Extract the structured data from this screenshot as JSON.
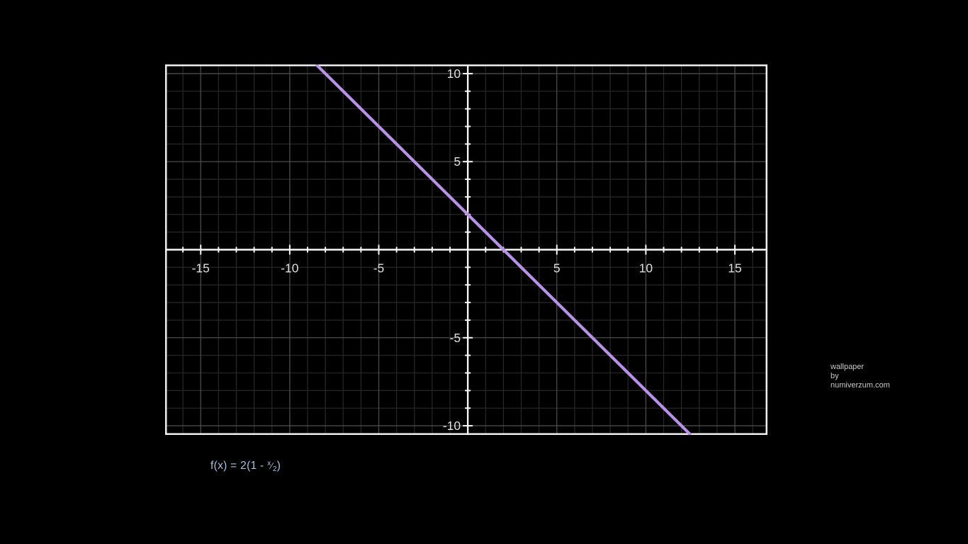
{
  "chart_data": {
    "type": "line",
    "title": "",
    "xlabel": "",
    "ylabel": "",
    "xlim": [
      -17.0,
      16.83
    ],
    "ylim": [
      -10.52,
      10.52
    ],
    "grid": {
      "on": true,
      "minor_step": 1,
      "major_step": 5,
      "minor_color": "#262626",
      "major_color": "#4b4b4b"
    },
    "frame_color": "#efefef",
    "axes": {
      "color": "#f7f7f7",
      "tick_step": 1,
      "minor_tick_half_len": 4,
      "major_tick_half_len": 7,
      "label_color": "#dedede",
      "label_font_size": 17.5,
      "x_tick_labels": [
        -15,
        -10,
        -5,
        5,
        10,
        15
      ],
      "y_tick_labels": [
        -10,
        -5,
        5,
        10
      ]
    },
    "series": [
      {
        "name": "f(x) = 2(1 - x/2)",
        "slope": -1,
        "intercept": 2,
        "color": "#b892e6",
        "stroke_width": 4.2,
        "sample_points": [
          [
            -8,
            10
          ],
          [
            -5,
            7
          ],
          [
            0,
            2
          ],
          [
            2,
            0
          ],
          [
            5,
            -3
          ],
          [
            12,
            -10
          ]
        ]
      }
    ]
  },
  "formula": {
    "prefix": "f(x) = 2(1 - ",
    "numerator": "x",
    "fraction_slash": "⁄",
    "denominator": "2",
    "suffix": ")",
    "color": "#a2c2e0"
  },
  "credit": {
    "line1": "wallpaper",
    "line2": "by",
    "line3": "numiverzum.com"
  }
}
